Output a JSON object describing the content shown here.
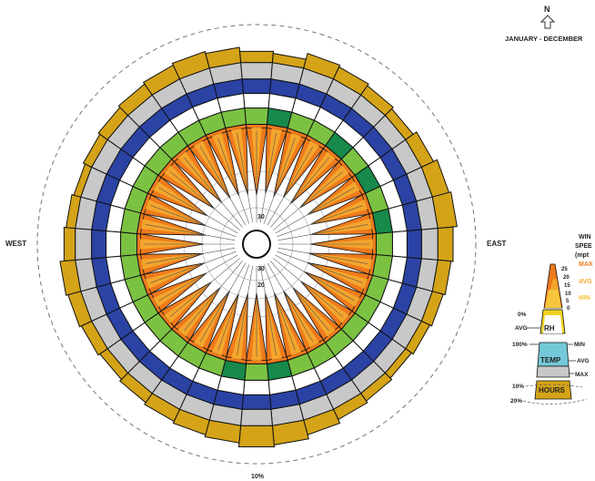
{
  "chart_data": {
    "type": "wind-rose",
    "title": "JANUARY - DECEMBER",
    "north_label": "N",
    "direction_labels": {
      "west": "WEST",
      "east": "EAST"
    },
    "ring_labels": {
      "outer_hours": "10%",
      "inner_30_a": "30",
      "inner_30_b": "30",
      "inner_20": "20"
    },
    "sector_count": 36,
    "wind_speed_mph": {
      "max": [
        18,
        20,
        19,
        22,
        21,
        24,
        26,
        25,
        23,
        22,
        21,
        22,
        23,
        25,
        24,
        22,
        20,
        19,
        18,
        19,
        21,
        22,
        24,
        26,
        25,
        23,
        22,
        21,
        20,
        22,
        24,
        23,
        22,
        21,
        20,
        19
      ],
      "avg": [
        13,
        14,
        13,
        15,
        14,
        16,
        17,
        16,
        15,
        15,
        14,
        15,
        16,
        17,
        16,
        15,
        14,
        13,
        13,
        14,
        15,
        15,
        16,
        17,
        17,
        16,
        15,
        14,
        14,
        15,
        16,
        16,
        15,
        14,
        14,
        13
      ]
    },
    "rh_level": [
      0.5,
      0.5,
      0.5,
      0.5,
      0.5,
      0.5,
      0.5,
      0.5,
      0.5,
      0.5,
      0.5,
      0.5,
      0.5,
      0.5,
      0.5,
      0.5,
      0.5,
      0.5,
      0.5,
      0.5,
      0.5,
      0.5,
      0.5,
      0.5,
      0.5,
      0.5,
      0.5,
      0.5,
      0.5,
      0.5,
      0.5,
      0.5,
      0.5,
      0.5,
      0.5,
      0.5
    ],
    "dark_green_sectors": [
      1,
      4,
      6,
      8,
      17,
      19
    ],
    "hours_percent": [
      14,
      13,
      16,
      15,
      14,
      13,
      15,
      17,
      18,
      16,
      15,
      14,
      13,
      12,
      13,
      14,
      16,
      18,
      19,
      17,
      16,
      15,
      14,
      13,
      14,
      15,
      16,
      14,
      13,
      12,
      13,
      14,
      15,
      16,
      17,
      16
    ],
    "legend": {
      "title_line1": "WIN",
      "title_line2": "SPEE",
      "title_line3": "(mpt",
      "max_label": "MAX",
      "avg_label": "AVG",
      "min_label": "MIN",
      "ticks": [
        "25",
        "20",
        "15",
        "10",
        "5",
        "0"
      ],
      "rh_label": "RH",
      "rh_min_pct": "0%",
      "rh_avg": "AVG",
      "rh_max_pct": "100%",
      "temp_label": "TEMP",
      "temp_min": "MIN",
      "temp_avg": "AVG",
      "temp_max": "MAX",
      "hours_label": "HOURS",
      "hours_10": "10%",
      "hours_20": "20%"
    },
    "colors": {
      "hours": "#d4a317",
      "temp_outer": "#c8c8c8",
      "blue": "#2a43a4",
      "light_green": "#7bc242",
      "dark_green": "#17894a",
      "speed_max": "#ee7a1c",
      "speed_avg": "#f4a52c",
      "speed_min": "#f6c53b",
      "rh_band": "#f2d321",
      "temp_band": "#74c9d8"
    }
  }
}
